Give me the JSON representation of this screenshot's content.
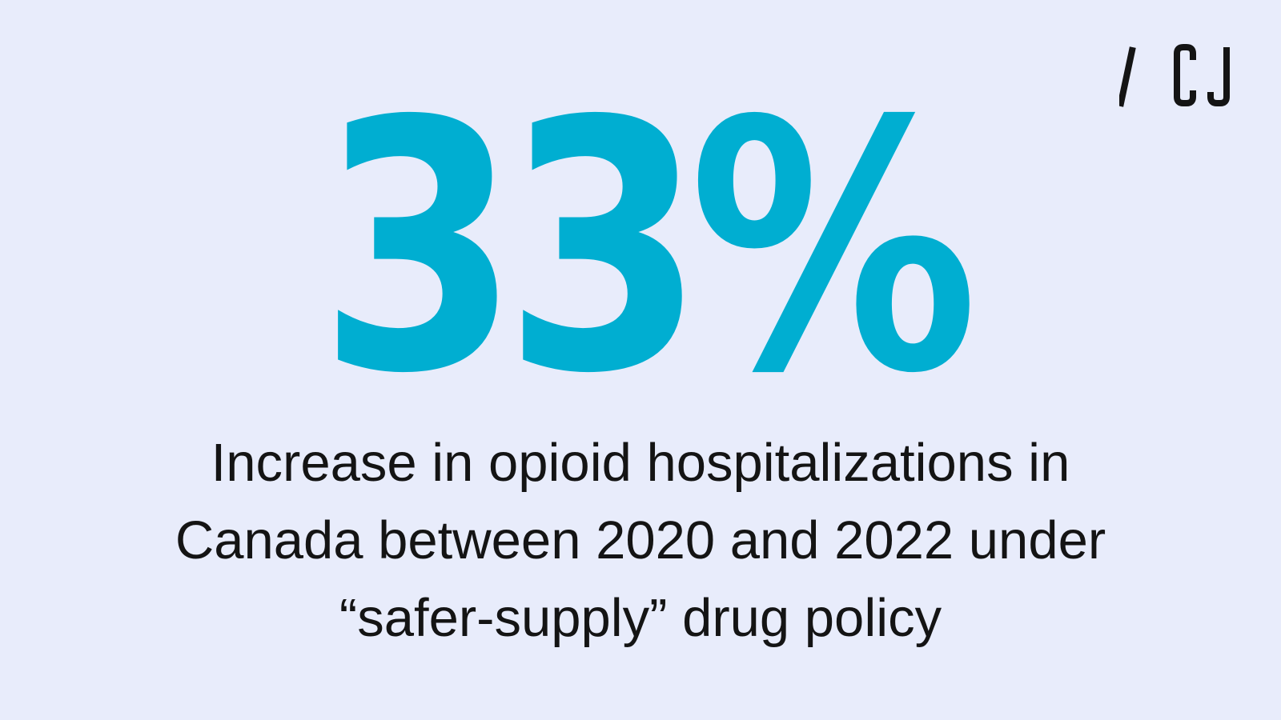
{
  "brand": {
    "logo_text": "/CJ",
    "colors": {
      "background": "#e8ecfb",
      "accent": "#00aed1",
      "text": "#141414"
    }
  },
  "headline": {
    "value": "33%"
  },
  "caption": {
    "lines": [
      "Increase in opioid hospitalizations in",
      "Canada between 2020 and 2022 under",
      "“safer-supply” drug policy"
    ]
  }
}
